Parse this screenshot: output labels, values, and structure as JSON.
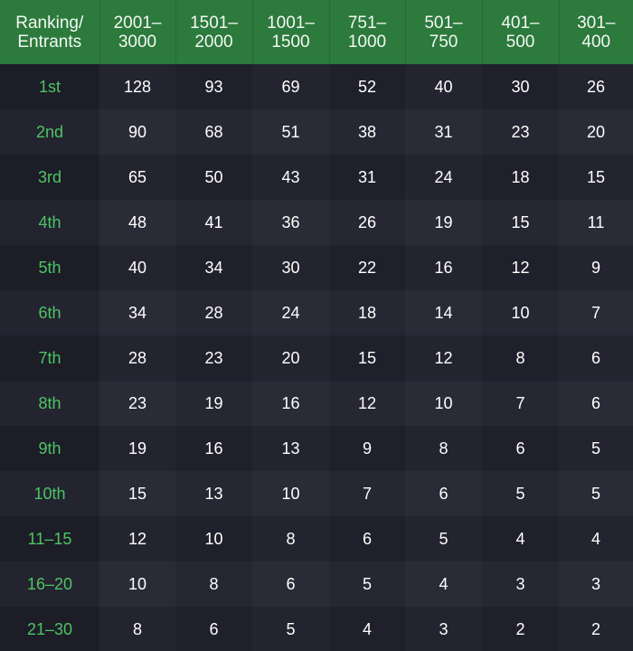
{
  "table": {
    "headers": [
      [
        "Ranking/",
        "Entrants"
      ],
      [
        "2001–",
        "3000"
      ],
      [
        "1501–",
        "2000"
      ],
      [
        "1001–",
        "1500"
      ],
      [
        "751–",
        "1000"
      ],
      [
        "501–",
        "750"
      ],
      [
        "401–",
        "500"
      ],
      [
        "301–",
        "400"
      ]
    ],
    "rows": [
      {
        "rank": "1st",
        "values": [
          "128",
          "93",
          "69",
          "52",
          "40",
          "30",
          "26"
        ]
      },
      {
        "rank": "2nd",
        "values": [
          "90",
          "68",
          "51",
          "38",
          "31",
          "23",
          "20"
        ]
      },
      {
        "rank": "3rd",
        "values": [
          "65",
          "50",
          "43",
          "31",
          "24",
          "18",
          "15"
        ]
      },
      {
        "rank": "4th",
        "values": [
          "48",
          "41",
          "36",
          "26",
          "19",
          "15",
          "11"
        ]
      },
      {
        "rank": "5th",
        "values": [
          "40",
          "34",
          "30",
          "22",
          "16",
          "12",
          "9"
        ]
      },
      {
        "rank": "6th",
        "values": [
          "34",
          "28",
          "24",
          "18",
          "14",
          "10",
          "7"
        ]
      },
      {
        "rank": "7th",
        "values": [
          "28",
          "23",
          "20",
          "15",
          "12",
          "8",
          "6"
        ]
      },
      {
        "rank": "8th",
        "values": [
          "23",
          "19",
          "16",
          "12",
          "10",
          "7",
          "6"
        ]
      },
      {
        "rank": "9th",
        "values": [
          "19",
          "16",
          "13",
          "9",
          "8",
          "6",
          "5"
        ]
      },
      {
        "rank": "10th",
        "values": [
          "15",
          "13",
          "10",
          "7",
          "6",
          "5",
          "5"
        ]
      },
      {
        "rank": "11–15",
        "values": [
          "12",
          "10",
          "8",
          "6",
          "5",
          "4",
          "4"
        ]
      },
      {
        "rank": "16–20",
        "values": [
          "10",
          "8",
          "6",
          "5",
          "4",
          "3",
          "3"
        ]
      },
      {
        "rank": "21–30",
        "values": [
          "8",
          "6",
          "5",
          "4",
          "3",
          "2",
          "2"
        ]
      }
    ]
  },
  "colors": {
    "header_background": "#2c7a3c",
    "rank_text": "#4dc463",
    "value_text": "#ffffff",
    "row_background": "#1f202b"
  }
}
